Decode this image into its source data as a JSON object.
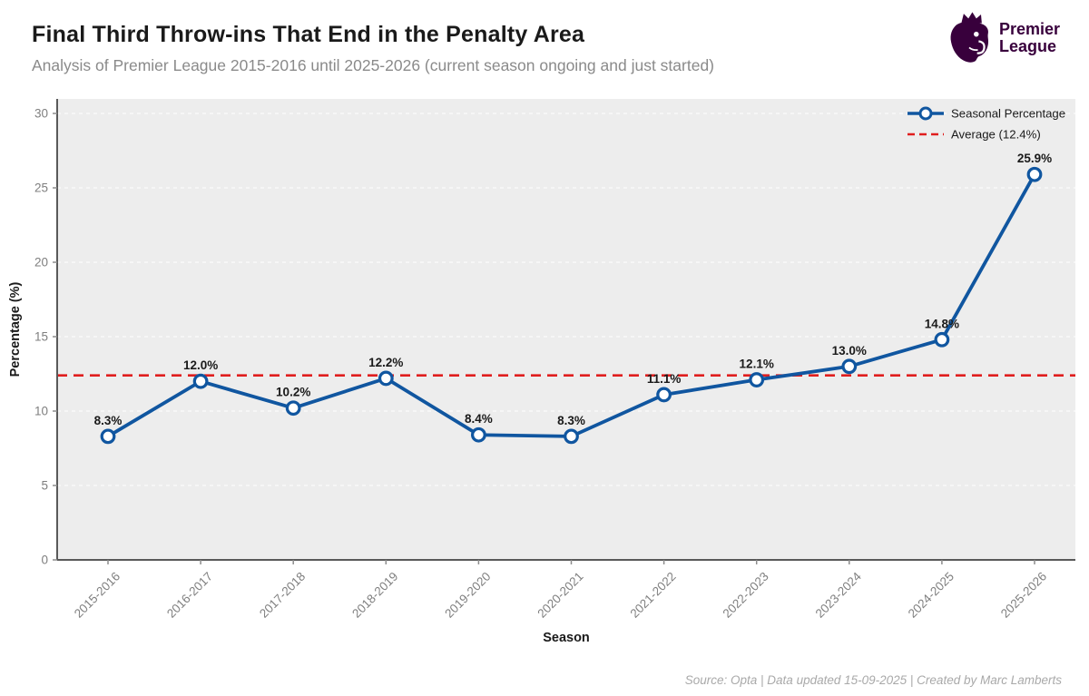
{
  "header": {
    "title": "Final Third Throw-ins That End in the Penalty Area",
    "subtitle": "Analysis of Premier League 2015-2016 until 2025-2026 (current season ongoing and just started)",
    "logo": {
      "line1": "Premier",
      "line2": "League",
      "brand_color": "#38003c"
    }
  },
  "chart_data": {
    "type": "line",
    "title": "",
    "xlabel": "Season",
    "ylabel": "Percentage (%)",
    "ylim": [
      0,
      30
    ],
    "yticks": [
      0,
      5,
      10,
      15,
      20,
      25,
      30
    ],
    "categories": [
      "2015-2016",
      "2016-2017",
      "2017-2018",
      "2018-2019",
      "2019-2020",
      "2020-2021",
      "2021-2022",
      "2022-2023",
      "2023-2024",
      "2024-2025",
      "2025-2026"
    ],
    "series": [
      {
        "name": "Seasonal Percentage",
        "values": [
          8.3,
          12.0,
          10.2,
          12.2,
          8.4,
          8.3,
          11.1,
          12.1,
          13.0,
          14.8,
          25.9
        ],
        "color": "#1056A0"
      }
    ],
    "data_labels": [
      "8.3%",
      "12.0%",
      "10.2%",
      "12.2%",
      "8.4%",
      "8.3%",
      "11.1%",
      "12.1%",
      "13.0%",
      "14.8%",
      "25.9%"
    ],
    "average_line": {
      "label": "Average (12.4%)",
      "value": 12.4,
      "color": "#E01E1E",
      "style": "dashed"
    },
    "legend": {
      "position": "upper right",
      "entries": [
        "Seasonal Percentage",
        "Average (12.4%)"
      ]
    },
    "grid": true,
    "plot_bg": "#EDEDED",
    "grid_color": "#FAFAFA",
    "spine_color": "#595959",
    "tick_label_color": "#7f7f7f",
    "data_label_color": "#1a1a1a"
  },
  "footer": {
    "text": "Source: Opta | Data updated 15-09-2025 | Created by Marc Lamberts"
  }
}
